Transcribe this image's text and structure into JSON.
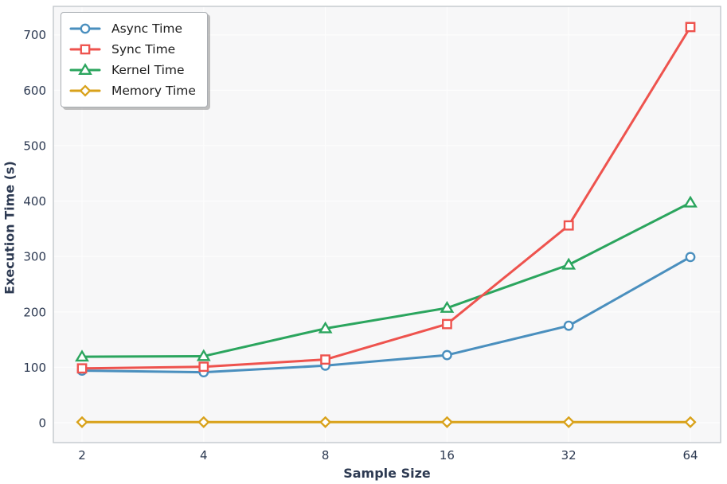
{
  "chart_data": {
    "type": "line",
    "title": "",
    "xlabel": "Sample Size",
    "ylabel": "Execution Time (s)",
    "x": [
      2,
      4,
      8,
      16,
      32,
      64
    ],
    "x_tick_labels": [
      "2",
      "4",
      "8",
      "16",
      "32",
      "64"
    ],
    "x_scale": "log2-equal-spacing",
    "y_ticks": [
      0,
      100,
      200,
      300,
      400,
      500,
      600,
      700
    ],
    "ylim": [
      -36,
      751
    ],
    "grid": "faint white gridlines on light gray panel",
    "legend_position": "upper left",
    "series": [
      {
        "name": "Async Time",
        "marker": "circle",
        "color": "#4A8FBE",
        "values": [
          94,
          91,
          103,
          122,
          175,
          299
        ]
      },
      {
        "name": "Sync Time",
        "marker": "square",
        "color": "#EE534E",
        "values": [
          98,
          101,
          114,
          178,
          356,
          714
        ]
      },
      {
        "name": "Kernel Time",
        "marker": "triangle-up",
        "color": "#2BA55E",
        "values": [
          119,
          120,
          170,
          207,
          285,
          397
        ]
      },
      {
        "name": "Memory Time",
        "marker": "diamond",
        "color": "#D9A21B",
        "values": [
          1,
          1,
          1,
          1,
          1,
          1
        ]
      }
    ]
  },
  "colors": {
    "figure_bg": "#ffffff",
    "plot_bg": "#f7f7f8",
    "spine": "#c3c7cc",
    "gridline": "#ffffff",
    "tick_label": "#2d3a52",
    "axis_label": "#2d3a52",
    "legend_bg": "#ffffff",
    "legend_border": "#a9adb2",
    "legend_text": "#1d1d1d",
    "marker_face": "#ffffff"
  }
}
